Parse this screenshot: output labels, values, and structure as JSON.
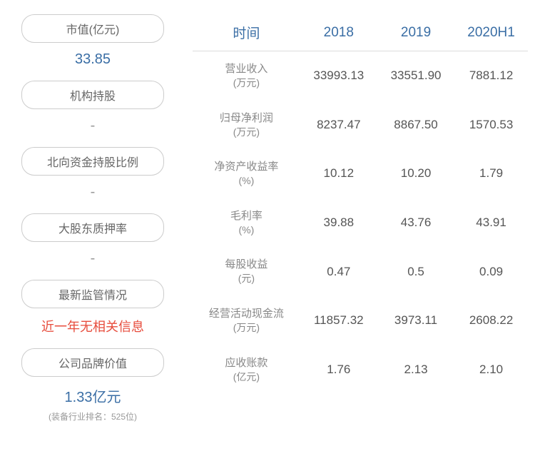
{
  "left_cards": [
    {
      "label": "市值(亿元)",
      "value": "33.85",
      "value_color": "#3a6ea5"
    },
    {
      "label": "机构持股",
      "value": "-",
      "value_color": "#999999"
    },
    {
      "label": "北向资金持股比例",
      "value": "-",
      "value_color": "#999999"
    },
    {
      "label": "大股东质押率",
      "value": "-",
      "value_color": "#999999"
    },
    {
      "label": "最新监管情况",
      "value": "近一年无相关信息",
      "value_color": "#e74c3c"
    },
    {
      "label": "公司品牌价值",
      "value": "1.33亿元",
      "value_color": "#3a6ea5",
      "subtitle": "(装备行业排名：525位)"
    }
  ],
  "table": {
    "header_color": "#3a6ea5",
    "columns": [
      "时间",
      "2018",
      "2019",
      "2020H1"
    ],
    "rows": [
      {
        "name": "营业收入",
        "unit": "(万元)",
        "values": [
          "33993.13",
          "33551.90",
          "7881.12"
        ]
      },
      {
        "name": "归母净利润",
        "unit": "(万元)",
        "values": [
          "8237.47",
          "8867.50",
          "1570.53"
        ]
      },
      {
        "name": "净资产收益率",
        "unit": "(%)",
        "values": [
          "10.12",
          "10.20",
          "1.79"
        ]
      },
      {
        "name": "毛利率",
        "unit": "(%)",
        "values": [
          "39.88",
          "43.76",
          "43.91"
        ]
      },
      {
        "name": "每股收益",
        "unit": "(元)",
        "values": [
          "0.47",
          "0.5",
          "0.09"
        ]
      },
      {
        "name": "经营活动现金流",
        "unit": "(万元)",
        "values": [
          "11857.32",
          "3973.11",
          "2608.22"
        ]
      },
      {
        "name": "应收账款",
        "unit": "(亿元)",
        "values": [
          "1.76",
          "2.13",
          "2.10"
        ]
      }
    ]
  },
  "colors": {
    "header_border": "#cccccc",
    "table_border": "#dddddd",
    "metric_text": "#888888",
    "cell_text": "#555555",
    "subtitle_text": "#999999"
  }
}
